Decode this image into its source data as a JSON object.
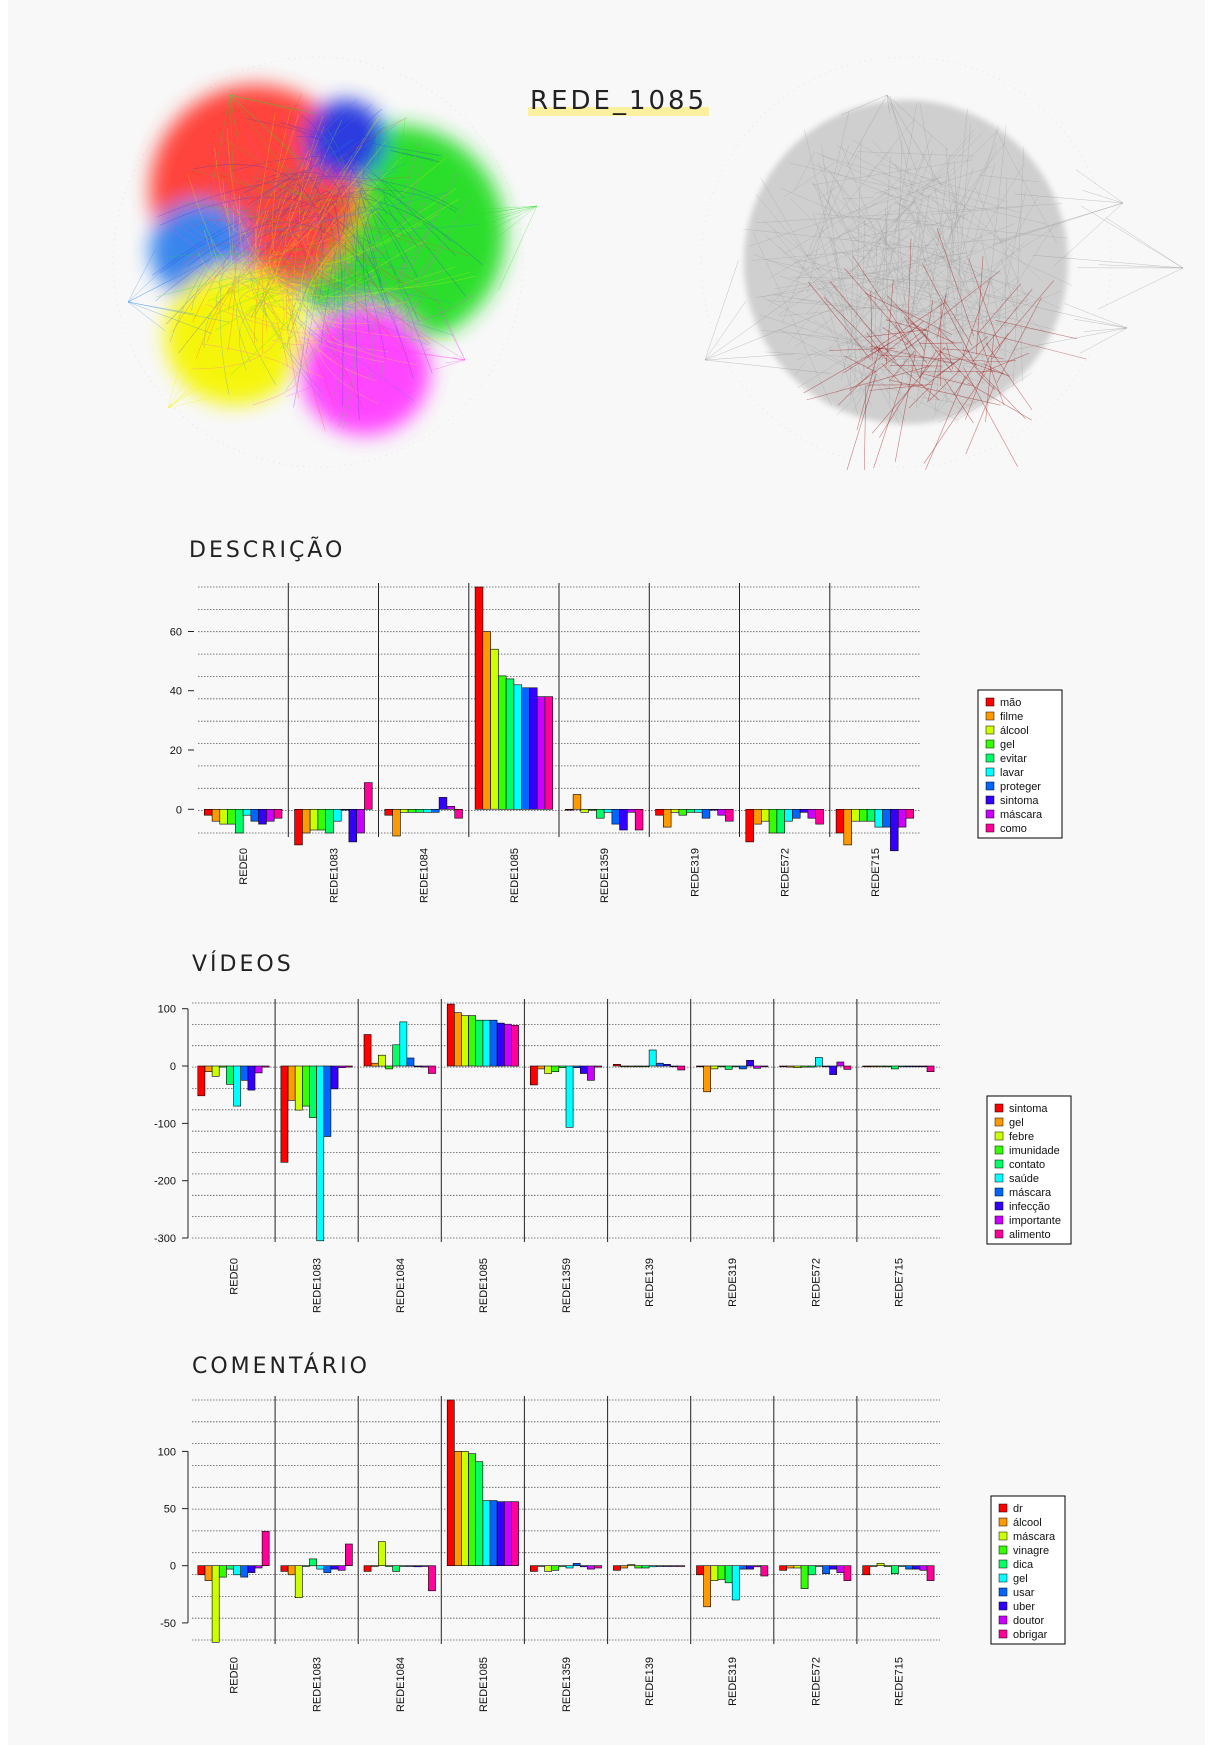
{
  "network_title": "REDE_1085",
  "network_palette": [
    "#ff3b30",
    "#2f80ed",
    "#f5f500",
    "#22dd22",
    "#ff3cff",
    "#2233dd"
  ],
  "chart_data": [
    {
      "type": "bar",
      "title": "DESCRIÇÃO",
      "categories": [
        "REDE0",
        "REDE1083",
        "REDE1084",
        "REDE1085",
        "REDE1359",
        "REDE319",
        "REDE572",
        "REDE715"
      ],
      "ylim": [
        -8,
        75
      ],
      "yticks": [
        0,
        20,
        40,
        60
      ],
      "grid": true,
      "legend_position": "right",
      "series": [
        {
          "name": "mão",
          "color": "#ff0000",
          "values": [
            -2,
            -12,
            -2,
            75,
            0,
            -2,
            -11,
            -8
          ]
        },
        {
          "name": "filme",
          "color": "#ff9900",
          "values": [
            -4,
            -8,
            -9,
            60,
            5,
            -6,
            -5,
            -12
          ]
        },
        {
          "name": "álcool",
          "color": "#ccff00",
          "values": [
            -5,
            -7,
            -1,
            54,
            -1,
            -1,
            -4,
            -4
          ]
        },
        {
          "name": "gel",
          "color": "#33ff00",
          "values": [
            -5,
            -7,
            -1,
            45,
            0,
            -2,
            -8,
            -4
          ]
        },
        {
          "name": "evitar",
          "color": "#00ff66",
          "values": [
            -8,
            -8,
            -1,
            44,
            -3,
            -1,
            -8,
            -4
          ]
        },
        {
          "name": "lavar",
          "color": "#00ffff",
          "values": [
            -2,
            -4,
            -1,
            42,
            -1,
            -1,
            -4,
            -6
          ]
        },
        {
          "name": "proteger",
          "color": "#0066ff",
          "values": [
            -4,
            0,
            -1,
            41,
            -5,
            -3,
            -3,
            -6
          ]
        },
        {
          "name": "sintoma",
          "color": "#3300ff",
          "values": [
            -5,
            -11,
            4,
            41,
            -7,
            0,
            -1,
            -14
          ]
        },
        {
          "name": "máscara",
          "color": "#cc00ff",
          "values": [
            -4,
            -8,
            1,
            38,
            -1,
            -2,
            -3,
            -6
          ]
        },
        {
          "name": "como",
          "color": "#ff0099",
          "values": [
            -3,
            9,
            -3,
            38,
            -7,
            -4,
            -5,
            -3
          ]
        }
      ]
    },
    {
      "type": "bar",
      "title": "VÍDEOS",
      "categories": [
        "REDE0",
        "REDE1083",
        "REDE1084",
        "REDE1085",
        "REDE1359",
        "REDE139",
        "REDE319",
        "REDE572",
        "REDE715"
      ],
      "ylim": [
        -300,
        110
      ],
      "yticks": [
        100,
        0,
        -100,
        -200,
        -300
      ],
      "grid": true,
      "legend_position": "right",
      "series": [
        {
          "name": "sintoma",
          "color": "#ff0000",
          "values": [
            -52,
            -168,
            55,
            108,
            -33,
            3,
            0,
            -1,
            0
          ]
        },
        {
          "name": "gel",
          "color": "#ff9900",
          "values": [
            -10,
            -60,
            5,
            93,
            -5,
            0,
            -45,
            -2,
            0
          ]
        },
        {
          "name": "febre",
          "color": "#ccff00",
          "values": [
            -18,
            -77,
            19,
            88,
            -13,
            0,
            -5,
            -3,
            0
          ]
        },
        {
          "name": "imunidade",
          "color": "#33ff00",
          "values": [
            -2,
            -70,
            -5,
            88,
            -10,
            0,
            -1,
            -2,
            0
          ]
        },
        {
          "name": "contato",
          "color": "#00ff66",
          "values": [
            -32,
            -90,
            37,
            80,
            -3,
            0,
            -6,
            -2,
            -5
          ]
        },
        {
          "name": "saúde",
          "color": "#00ffff",
          "values": [
            -70,
            -305,
            77,
            80,
            -107,
            28,
            -1,
            15,
            0
          ]
        },
        {
          "name": "máscara",
          "color": "#0066ff",
          "values": [
            -25,
            -123,
            14,
            80,
            -3,
            5,
            -5,
            0,
            0
          ]
        },
        {
          "name": "infecção",
          "color": "#3300ff",
          "values": [
            -42,
            -40,
            -1,
            75,
            -13,
            3,
            10,
            -15,
            0
          ]
        },
        {
          "name": "importante",
          "color": "#cc00ff",
          "values": [
            -12,
            -3,
            -2,
            73,
            -25,
            0,
            -4,
            7,
            0
          ]
        },
        {
          "name": "alimento",
          "color": "#ff0099",
          "values": [
            -2,
            -2,
            -13,
            71,
            -2,
            -7,
            -1,
            -6,
            -10
          ]
        }
      ]
    },
    {
      "type": "bar",
      "title": "COMENTÁRIO",
      "categories": [
        "REDE0",
        "REDE1083",
        "REDE1084",
        "REDE1085",
        "REDE1359",
        "REDE139",
        "REDE319",
        "REDE572",
        "REDE715"
      ],
      "ylim": [
        -65,
        145
      ],
      "yticks": [
        100,
        50,
        0,
        -50
      ],
      "grid": true,
      "legend_position": "right",
      "series": [
        {
          "name": "dr",
          "color": "#ff0000",
          "values": [
            -8,
            -5,
            -5,
            145,
            -5,
            -4,
            -8,
            -4,
            -8
          ]
        },
        {
          "name": "álcool",
          "color": "#ff9900",
          "values": [
            -13,
            -8,
            0,
            100,
            0,
            -2,
            -36,
            -2,
            0
          ]
        },
        {
          "name": "máscara",
          "color": "#ccff00",
          "values": [
            -67,
            -28,
            21,
            100,
            -5,
            1,
            -13,
            -2,
            2
          ]
        },
        {
          "name": "vinagre",
          "color": "#33ff00",
          "values": [
            -10,
            0,
            0,
            98,
            -4,
            -2,
            -12,
            -20,
            0
          ]
        },
        {
          "name": "dica",
          "color": "#00ff66",
          "values": [
            -3,
            6,
            -5,
            91,
            0,
            -2,
            -15,
            -8,
            -7
          ]
        },
        {
          "name": "gel",
          "color": "#00ffff",
          "values": [
            -8,
            -3,
            0,
            57,
            -2,
            -1,
            -30,
            0,
            0
          ]
        },
        {
          "name": "usar",
          "color": "#0066ff",
          "values": [
            -10,
            -6,
            0,
            57,
            2,
            0,
            -3,
            -7,
            -3
          ]
        },
        {
          "name": "uber",
          "color": "#3300ff",
          "values": [
            -6,
            -3,
            -1,
            56,
            -1,
            0,
            -3,
            -3,
            -3
          ]
        },
        {
          "name": "doutor",
          "color": "#cc00ff",
          "values": [
            -2,
            -4,
            0,
            56,
            -3,
            0,
            -1,
            -6,
            -4
          ]
        },
        {
          "name": "obrigar",
          "color": "#ff0099",
          "values": [
            30,
            19,
            -22,
            56,
            -2,
            0,
            -9,
            -13,
            -13
          ]
        }
      ]
    }
  ]
}
